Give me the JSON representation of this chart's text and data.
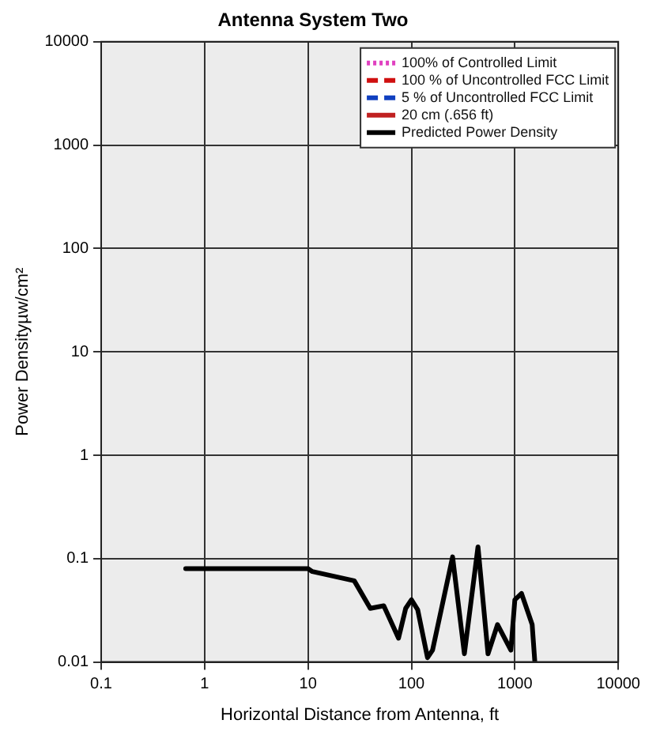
{
  "chart_data": {
    "type": "line",
    "title": "Antenna System Two",
    "xlabel": "Horizontal Distance from Antenna, ft",
    "ylabel": "Power Densityµw/cm²",
    "log": "xy",
    "xlim": [
      0.1,
      10000
    ],
    "ylim": [
      0.01,
      10000
    ],
    "xticks": [
      0.1,
      1,
      10,
      100,
      1000,
      10000
    ],
    "yticks": [
      0.01,
      0.1,
      1,
      10,
      100,
      1000,
      10000
    ],
    "grid": true,
    "legend": "top right",
    "x": [
      0.656,
      10,
      11,
      28,
      40,
      54,
      75,
      88,
      100,
      115,
      143,
      160,
      250,
      325,
      440,
      550,
      680,
      915,
      1000,
      1160,
      1470,
      1560
    ],
    "series": [
      {
        "name": "100% of Controlled Limit",
        "color": "#e040c0",
        "line_style": "dotted",
        "values": [
          null,
          null,
          null,
          null,
          null,
          null,
          null,
          null,
          null,
          null,
          null,
          null,
          null,
          null,
          null,
          null,
          null,
          null,
          null,
          null,
          null,
          null
        ]
      },
      {
        "name": "100 % of Uncontrolled FCC Limit",
        "color": "#d01010",
        "line_style": "dashed",
        "values": [
          null,
          null,
          null,
          null,
          null,
          null,
          null,
          null,
          null,
          null,
          null,
          null,
          null,
          null,
          null,
          null,
          null,
          null,
          null,
          null,
          null,
          null
        ]
      },
      {
        "name": "5 % of Uncontrolled FCC Limit",
        "color": "#1040c0",
        "line_style": "dashed",
        "values": [
          null,
          null,
          null,
          null,
          null,
          null,
          null,
          null,
          null,
          null,
          null,
          null,
          null,
          null,
          null,
          null,
          null,
          null,
          null,
          null,
          null,
          null
        ]
      },
      {
        "name": "20 cm (.656 ft)",
        "color": "#c02020",
        "line_style": "solid",
        "values": [
          null,
          null,
          null,
          null,
          null,
          null,
          null,
          null,
          null,
          null,
          null,
          null,
          null,
          null,
          null,
          null,
          null,
          null,
          null,
          null,
          null,
          null
        ]
      },
      {
        "name": "Predicted Power Density",
        "color": "#000000",
        "line_style": "solid",
        "values": [
          0.08,
          0.08,
          0.075,
          0.061,
          0.033,
          0.035,
          0.017,
          0.033,
          0.04,
          0.032,
          0.011,
          0.013,
          0.104,
          0.012,
          0.13,
          0.012,
          0.023,
          0.013,
          0.04,
          0.046,
          0.023,
          0.01
        ]
      }
    ]
  }
}
